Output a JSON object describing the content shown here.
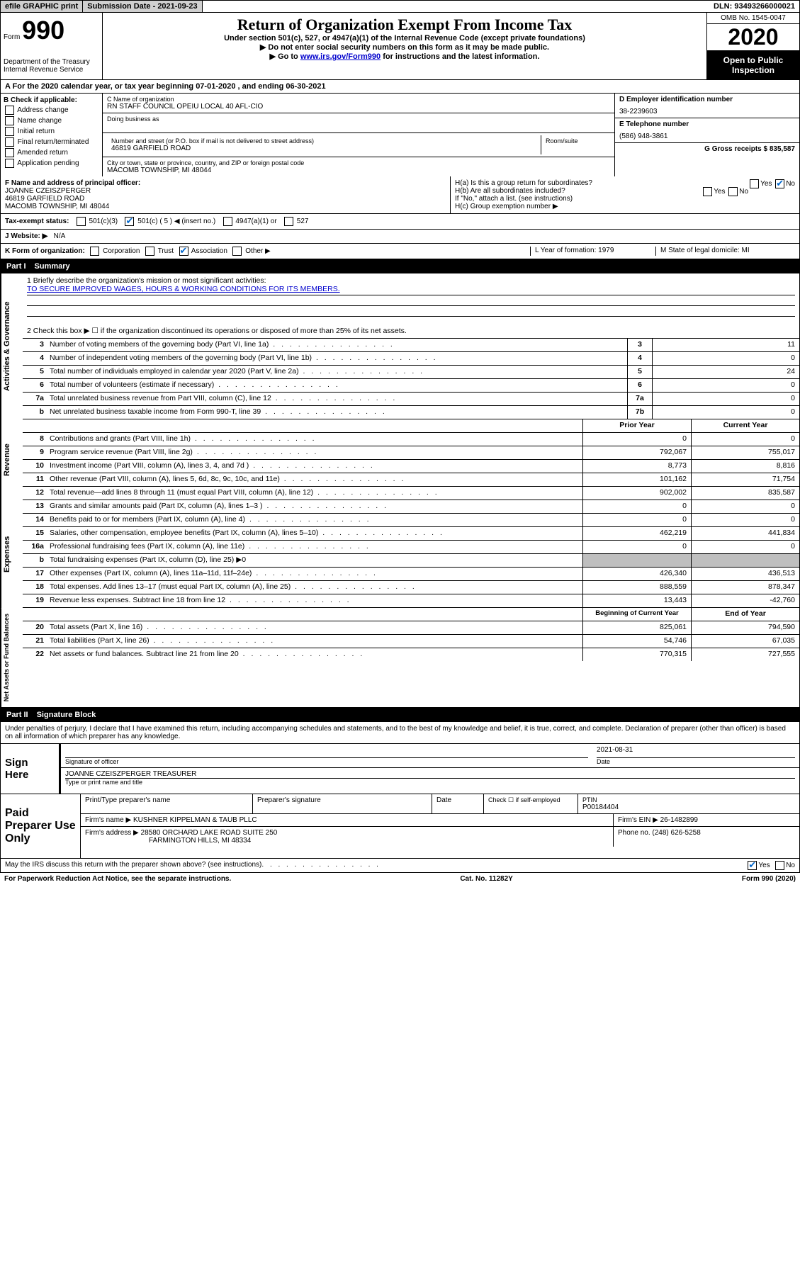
{
  "topbar": {
    "efile": "efile GRAPHIC print",
    "submission": "Submission Date - 2021-09-23",
    "dln": "DLN: 93493266000021"
  },
  "header": {
    "form_word": "Form",
    "form_num": "990",
    "dept": "Department of the Treasury\nInternal Revenue Service",
    "title": "Return of Organization Exempt From Income Tax",
    "sub1": "Under section 501(c), 527, or 4947(a)(1) of the Internal Revenue Code (except private foundations)",
    "sub2": "▶ Do not enter social security numbers on this form as it may be made public.",
    "sub3_pre": "▶ Go to ",
    "sub3_link": "www.irs.gov/Form990",
    "sub3_post": " for instructions and the latest information.",
    "omb": "OMB No. 1545-0047",
    "year": "2020",
    "open": "Open to Public Inspection"
  },
  "line_a": "A For the 2020 calendar year, or tax year beginning 07-01-2020    , and ending 06-30-2021",
  "col_b": {
    "title": "B Check if applicable:",
    "items": [
      "Address change",
      "Name change",
      "Initial return",
      "Final return/terminated",
      "Amended return",
      "Application pending"
    ]
  },
  "col_c": {
    "name_label": "C Name of organization",
    "name": "RN STAFF COUNCIL OPEIU LOCAL 40 AFL-CIO",
    "dba_label": "Doing business as",
    "addr_label": "Number and street (or P.O. box if mail is not delivered to street address)",
    "room_label": "Room/suite",
    "addr": "46819 GARFIELD ROAD",
    "city_label": "City or town, state or province, country, and ZIP or foreign postal code",
    "city": "MACOMB TOWNSHIP, MI  48044"
  },
  "col_d": {
    "d_label": "D Employer identification number",
    "d_val": "38-2239603",
    "e_label": "E Telephone number",
    "e_val": "(586) 948-3861",
    "g_label": "G Gross receipts $ 835,587"
  },
  "row_f": {
    "f_label": "F Name and address of principal officer:",
    "f_val": "JOANNE CZEISZPERGER\n46819 GARFIELD ROAD\nMACOMB TOWNSHIP, MI  48044",
    "ha": "H(a)  Is this a group return for subordinates?",
    "hb": "H(b)  Are all subordinates included?",
    "hb_note": "If \"No,\" attach a list. (see instructions)",
    "hc": "H(c)  Group exemption number ▶"
  },
  "status": {
    "label": "Tax-exempt status:",
    "opts": [
      "501(c)(3)",
      "501(c) ( 5 ) ◀ (insert no.)",
      "4947(a)(1) or",
      "527"
    ]
  },
  "website": {
    "label": "J  Website: ▶",
    "val": "N/A"
  },
  "row_k": {
    "k": "K Form of organization:",
    "opts": [
      "Corporation",
      "Trust",
      "Association",
      "Other ▶"
    ],
    "l": "L Year of formation: 1979",
    "m": "M State of legal domicile: MI"
  },
  "part1": {
    "num": "Part I",
    "title": "Summary"
  },
  "mission": {
    "q1": "1  Briefly describe the organization's mission or most significant activities:",
    "q1v": "TO SECURE IMPROVED WAGES, HOURS & WORKING CONDITIONS FOR ITS MEMBERS.",
    "q2": "2   Check this box ▶ ☐  if the organization discontinued its operations or disposed of more than 25% of its net assets."
  },
  "sec_ag": {
    "label": "Activities & Governance",
    "rows": [
      {
        "n": "3",
        "d": "Number of voting members of the governing body (Part VI, line 1a)",
        "r": "3",
        "v": "11"
      },
      {
        "n": "4",
        "d": "Number of independent voting members of the governing body (Part VI, line 1b)",
        "r": "4",
        "v": "0"
      },
      {
        "n": "5",
        "d": "Total number of individuals employed in calendar year 2020 (Part V, line 2a)",
        "r": "5",
        "v": "24"
      },
      {
        "n": "6",
        "d": "Total number of volunteers (estimate if necessary)",
        "r": "6",
        "v": "0"
      },
      {
        "n": "7a",
        "d": "Total unrelated business revenue from Part VIII, column (C), line 12",
        "r": "7a",
        "v": "0"
      },
      {
        "n": "b",
        "d": "Net unrelated business taxable income from Form 990-T, line 39",
        "r": "7b",
        "v": "0"
      }
    ]
  },
  "cols": {
    "prior": "Prior Year",
    "current": "Current Year",
    "boy": "Beginning of Current Year",
    "eoy": "End of Year"
  },
  "sec_rev": {
    "label": "Revenue",
    "rows": [
      {
        "n": "8",
        "d": "Contributions and grants (Part VIII, line 1h)",
        "v1": "0",
        "v2": "0"
      },
      {
        "n": "9",
        "d": "Program service revenue (Part VIII, line 2g)",
        "v1": "792,067",
        "v2": "755,017"
      },
      {
        "n": "10",
        "d": "Investment income (Part VIII, column (A), lines 3, 4, and 7d )",
        "v1": "8,773",
        "v2": "8,816"
      },
      {
        "n": "11",
        "d": "Other revenue (Part VIII, column (A), lines 5, 6d, 8c, 9c, 10c, and 11e)",
        "v1": "101,162",
        "v2": "71,754"
      },
      {
        "n": "12",
        "d": "Total revenue—add lines 8 through 11 (must equal Part VIII, column (A), line 12)",
        "v1": "902,002",
        "v2": "835,587"
      }
    ]
  },
  "sec_exp": {
    "label": "Expenses",
    "rows": [
      {
        "n": "13",
        "d": "Grants and similar amounts paid (Part IX, column (A), lines 1–3 )",
        "v1": "0",
        "v2": "0"
      },
      {
        "n": "14",
        "d": "Benefits paid to or for members (Part IX, column (A), line 4)",
        "v1": "0",
        "v2": "0"
      },
      {
        "n": "15",
        "d": "Salaries, other compensation, employee benefits (Part IX, column (A), lines 5–10)",
        "v1": "462,219",
        "v2": "441,834"
      },
      {
        "n": "16a",
        "d": "Professional fundraising fees (Part IX, column (A), line 11e)",
        "v1": "0",
        "v2": "0"
      },
      {
        "n": "b",
        "d": "Total fundraising expenses (Part IX, column (D), line 25) ▶0",
        "shaded": true
      },
      {
        "n": "17",
        "d": "Other expenses (Part IX, column (A), lines 11a–11d, 11f–24e)",
        "v1": "426,340",
        "v2": "436,513"
      },
      {
        "n": "18",
        "d": "Total expenses. Add lines 13–17 (must equal Part IX, column (A), line 25)",
        "v1": "888,559",
        "v2": "878,347"
      },
      {
        "n": "19",
        "d": "Revenue less expenses. Subtract line 18 from line 12",
        "v1": "13,443",
        "v2": "-42,760"
      }
    ]
  },
  "sec_na": {
    "label": "Net Assets or Fund Balances",
    "rows": [
      {
        "n": "20",
        "d": "Total assets (Part X, line 16)",
        "v1": "825,061",
        "v2": "794,590"
      },
      {
        "n": "21",
        "d": "Total liabilities (Part X, line 26)",
        "v1": "54,746",
        "v2": "67,035"
      },
      {
        "n": "22",
        "d": "Net assets or fund balances. Subtract line 21 from line 20",
        "v1": "770,315",
        "v2": "727,555"
      }
    ]
  },
  "part2": {
    "num": "Part II",
    "title": "Signature Block"
  },
  "perjury": "Under penalties of perjury, I declare that I have examined this return, including accompanying schedules and statements, and to the best of my knowledge and belief, it is true, correct, and complete. Declaration of preparer (other than officer) is based on all information of which preparer has any knowledge.",
  "sign": {
    "label": "Sign Here",
    "sig_label": "Signature of officer",
    "date_label": "Date",
    "date": "2021-08-31",
    "name": "JOANNE CZEISZPERGER  TREASURER",
    "name_label": "Type or print name and title"
  },
  "paid": {
    "label": "Paid Preparer Use Only",
    "h1": "Print/Type preparer's name",
    "h2": "Preparer's signature",
    "h3": "Date",
    "h4": "Check ☐ if self-employed",
    "h5": "PTIN",
    "ptin": "P00184404",
    "firm_label": "Firm's name    ▶",
    "firm": "KUSHNER KIPPELMAN & TAUB PLLC",
    "ein_label": "Firm's EIN ▶",
    "ein": "26-1482899",
    "addr_label": "Firm's address ▶",
    "addr1": "28580 ORCHARD LAKE ROAD SUITE 250",
    "addr2": "FARMINGTON HILLS, MI  48334",
    "phone_label": "Phone no.",
    "phone": "(248) 626-5258"
  },
  "discuss": "May the IRS discuss this return with the preparer shown above? (see instructions)",
  "footer": {
    "l": "For Paperwork Reduction Act Notice, see the separate instructions.",
    "m": "Cat. No. 11282Y",
    "r": "Form 990 (2020)"
  },
  "yes": "Yes",
  "no": "No"
}
